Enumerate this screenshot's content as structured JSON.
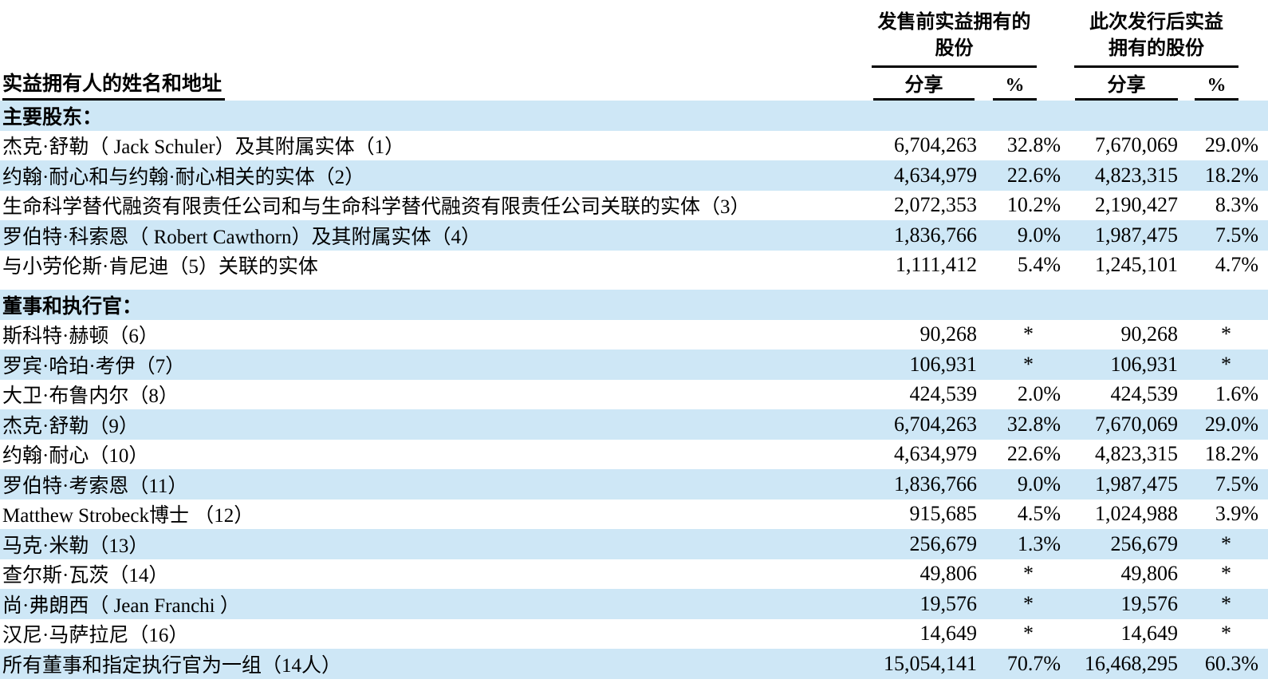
{
  "colors": {
    "row_highlight": "#cee7f6",
    "rule": "#000000",
    "text": "#000000"
  },
  "table": {
    "name_header": "实益拥有人的姓名和地址",
    "group_before": {
      "title_line1": "发售前实益拥有的",
      "title_line2": "股份",
      "shares_label": "分享",
      "pct_label": "%"
    },
    "group_after": {
      "title_line1": "此次发行后实益",
      "title_line2": "拥有的股份",
      "shares_label": "分享",
      "pct_label": "%"
    },
    "sections": [
      {
        "label": "主要股东：",
        "rows": [
          {
            "name": "杰克·舒勒（ Jack Schuler）及其附属实体（1）",
            "shares_before": "6,704,263",
            "pct_before": "32.8%",
            "shares_after": "7,670,069",
            "pct_after": "29.0%"
          },
          {
            "name": "约翰·耐心和与约翰·耐心相关的实体（2）",
            "shares_before": "4,634,979",
            "pct_before": "22.6%",
            "shares_after": "4,823,315",
            "pct_after": "18.2%"
          },
          {
            "name": "生命科学替代融资有限责任公司和与生命科学替代融资有限责任公司关联的实体（3）",
            "shares_before": "2,072,353",
            "pct_before": "10.2%",
            "shares_after": "2,190,427",
            "pct_after": "8.3%"
          },
          {
            "name": "罗伯特·科索恩（ Robert Cawthorn）及其附属实体（4）",
            "shares_before": "1,836,766",
            "pct_before": "9.0%",
            "shares_after": "1,987,475",
            "pct_after": "7.5%"
          },
          {
            "name": "与小劳伦斯·肯尼迪（5）关联的实体",
            "shares_before": "1,111,412",
            "pct_before": "5.4%",
            "shares_after": "1,245,101",
            "pct_after": "4.7%"
          }
        ]
      },
      {
        "label": "董事和执行官：",
        "rows": [
          {
            "name": "斯科特·赫顿（6）",
            "shares_before": "90,268",
            "pct_before": "*",
            "shares_after": "90,268",
            "pct_after": "*"
          },
          {
            "name": "罗宾·哈珀·考伊（7）",
            "shares_before": "106,931",
            "pct_before": "*",
            "shares_after": "106,931",
            "pct_after": "*"
          },
          {
            "name": "大卫·布鲁内尔（8）",
            "shares_before": "424,539",
            "pct_before": "2.0%",
            "shares_after": "424,539",
            "pct_after": "1.6%"
          },
          {
            "name": "杰克·舒勒（9）",
            "shares_before": "6,704,263",
            "pct_before": "32.8%",
            "shares_after": "7,670,069",
            "pct_after": "29.0%"
          },
          {
            "name": "约翰·耐心（10）",
            "shares_before": "4,634,979",
            "pct_before": "22.6%",
            "shares_after": "4,823,315",
            "pct_after": "18.2%"
          },
          {
            "name": "罗伯特·考索恩（11）",
            "shares_before": "1,836,766",
            "pct_before": "9.0%",
            "shares_after": "1,987,475",
            "pct_after": "7.5%"
          },
          {
            "name": "Matthew Strobeck博士 （12）",
            "shares_before": "915,685",
            "pct_before": "4.5%",
            "shares_after": "1,024,988",
            "pct_after": "3.9%"
          },
          {
            "name": "马克·米勒（13）",
            "shares_before": "256,679",
            "pct_before": "1.3%",
            "shares_after": "256,679",
            "pct_after": "*"
          },
          {
            "name": "查尔斯·瓦茨（14）",
            "shares_before": "49,806",
            "pct_before": "*",
            "shares_after": "49,806",
            "pct_after": "*"
          },
          {
            "name": "尚·弗朗西（ Jean Franchi ）",
            "shares_before": "19,576",
            "pct_before": "*",
            "shares_after": "19,576",
            "pct_after": "*"
          },
          {
            "name": "汉尼·马萨拉尼（16）",
            "shares_before": "14,649",
            "pct_before": "*",
            "shares_after": "14,649",
            "pct_after": "*"
          },
          {
            "name": "所有董事和指定执行官为一组（14人）",
            "shares_before": "15,054,141",
            "pct_before": "70.7%",
            "shares_after": "16,468,295",
            "pct_after": "60.3%"
          }
        ]
      }
    ]
  }
}
